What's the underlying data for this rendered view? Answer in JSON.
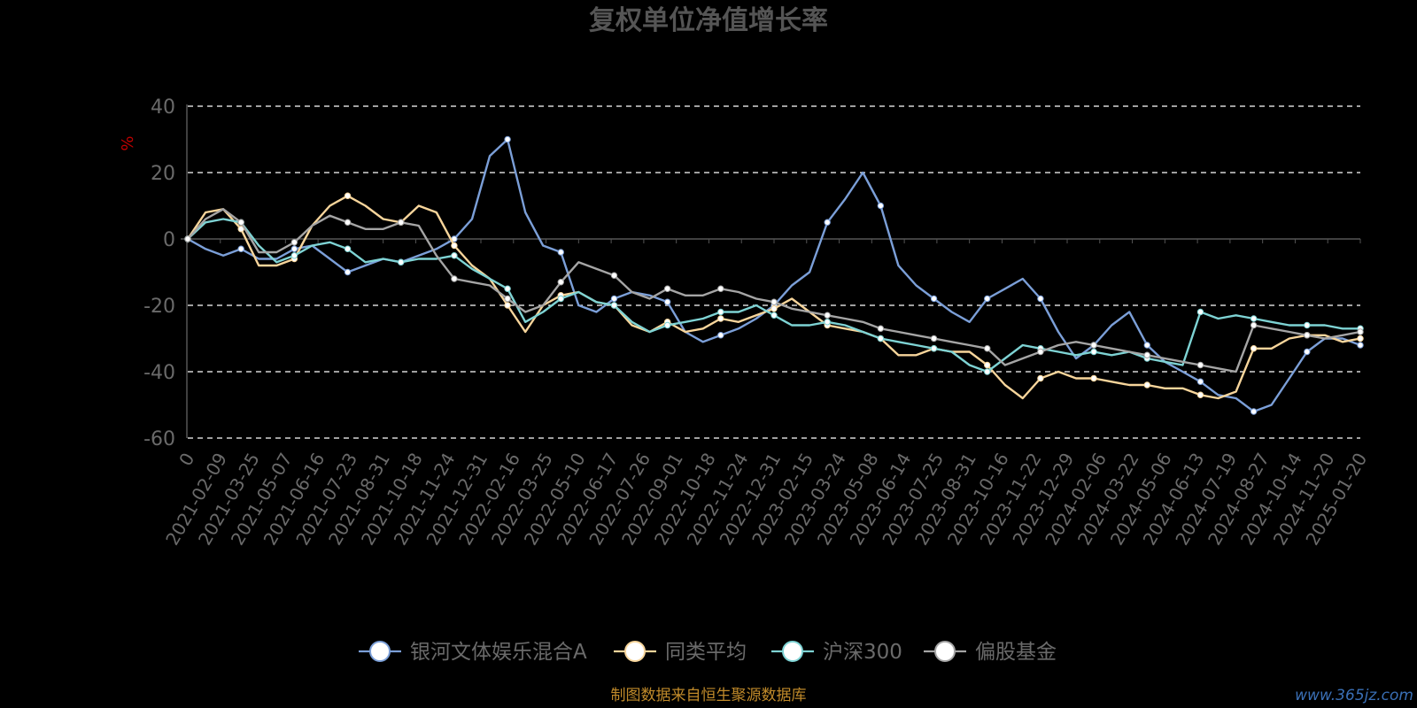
{
  "chart_data": {
    "type": "line",
    "title": "复权单位净值增长率",
    "ylabel": "%",
    "ylim": [
      -60,
      40
    ],
    "yticks": [
      40,
      20,
      0,
      -20,
      -40,
      -60
    ],
    "grid": true,
    "legend_position": "bottom-center",
    "x_labels": [
      "0",
      "2021-02-09",
      "2021-03-25",
      "2021-05-07",
      "2021-06-16",
      "2021-07-23",
      "2021-08-31",
      "2021-10-18",
      "2021-11-24",
      "2021-12-31",
      "2022-02-16",
      "2022-03-25",
      "2022-05-10",
      "2022-06-17",
      "2022-07-26",
      "2022-09-01",
      "2022-10-18",
      "2022-11-24",
      "2022-12-31",
      "2023-02-15",
      "2023-03-24",
      "2023-05-08",
      "2023-06-14",
      "2023-07-25",
      "2023-08-31",
      "2023-10-16",
      "2023-11-22",
      "2023-12-29",
      "2024-02-06",
      "2024-03-22",
      "2024-05-06",
      "2024-06-13",
      "2024-07-19",
      "2024-08-27",
      "2024-10-14",
      "2024-11-20",
      "2025-01-20"
    ],
    "series": [
      {
        "name": "银河文体娱乐混合A",
        "color": "#7b9fd8",
        "values": [
          0,
          -3,
          -5,
          -3,
          -6,
          -6,
          -3,
          -2,
          -6,
          -10,
          -8,
          -6,
          -7,
          -5,
          -3,
          0,
          6,
          25,
          30,
          8,
          -2,
          -4,
          -20,
          -22,
          -18,
          -16,
          -17,
          -19,
          -28,
          -31,
          -29,
          -27,
          -24,
          -20,
          -14,
          -10,
          5,
          12,
          20,
          10,
          -8,
          -14,
          -18,
          -22,
          -25,
          -18,
          -15,
          -12,
          -18,
          -28,
          -36,
          -32,
          -26,
          -22,
          -32,
          -37,
          -40,
          -43,
          -47,
          -48,
          -52,
          -50,
          -42,
          -34,
          -30,
          -30,
          -32
        ]
      },
      {
        "name": "同类平均",
        "color": "#f7d59b",
        "values": [
          0,
          8,
          9,
          3,
          -8,
          -8,
          -6,
          4,
          10,
          13,
          10,
          6,
          5,
          10,
          8,
          -2,
          -8,
          -12,
          -20,
          -28,
          -20,
          -17,
          -16,
          -19,
          -20,
          -26,
          -28,
          -25,
          -28,
          -27,
          -24,
          -25,
          -23,
          -21,
          -18,
          -22,
          -26,
          -27,
          -28,
          -30,
          -35,
          -35,
          -33,
          -34,
          -34,
          -38,
          -44,
          -48,
          -42,
          -40,
          -42,
          -42,
          -43,
          -44,
          -44,
          -45,
          -45,
          -47,
          -48,
          -46,
          -33,
          -33,
          -30,
          -29,
          -29,
          -31,
          -30
        ]
      },
      {
        "name": "沪深300",
        "color": "#7ed3d4",
        "values": [
          0,
          5,
          6,
          5,
          -2,
          -7,
          -5,
          -2,
          -1,
          -3,
          -7,
          -6,
          -7,
          -6,
          -6,
          -5,
          -9,
          -12,
          -15,
          -25,
          -22,
          -18,
          -16,
          -19,
          -20,
          -25,
          -28,
          -26,
          -25,
          -24,
          -22,
          -22,
          -20,
          -23,
          -26,
          -26,
          -25,
          -26,
          -28,
          -30,
          -31,
          -32,
          -33,
          -34,
          -38,
          -40,
          -36,
          -32,
          -33,
          -34,
          -35,
          -34,
          -35,
          -34,
          -36,
          -37,
          -38,
          -22,
          -24,
          -23,
          -24,
          -25,
          -26,
          -26,
          -26,
          -27,
          -27
        ]
      },
      {
        "name": "偏股基金",
        "color": "#a5a5a5",
        "values": [
          0,
          6,
          9,
          5,
          -4,
          -4,
          -1,
          4,
          7,
          5,
          3,
          3,
          5,
          4,
          -5,
          -12,
          -13,
          -14,
          -18,
          -22,
          -20,
          -13,
          -7,
          -9,
          -11,
          -16,
          -18,
          -15,
          -17,
          -17,
          -15,
          -16,
          -18,
          -19,
          -21,
          -22,
          -23,
          -24,
          -25,
          -27,
          -28,
          -29,
          -30,
          -31,
          -32,
          -33,
          -38,
          -36,
          -34,
          -32,
          -31,
          -32,
          -33,
          -34,
          -35,
          -36,
          -37,
          -38,
          -39,
          -40,
          -26,
          -27,
          -28,
          -29,
          -30,
          -29,
          -28
        ]
      }
    ]
  },
  "footer": {
    "source": "制图数据来自恒生聚源数据库",
    "watermark": "www.365jz.com"
  }
}
